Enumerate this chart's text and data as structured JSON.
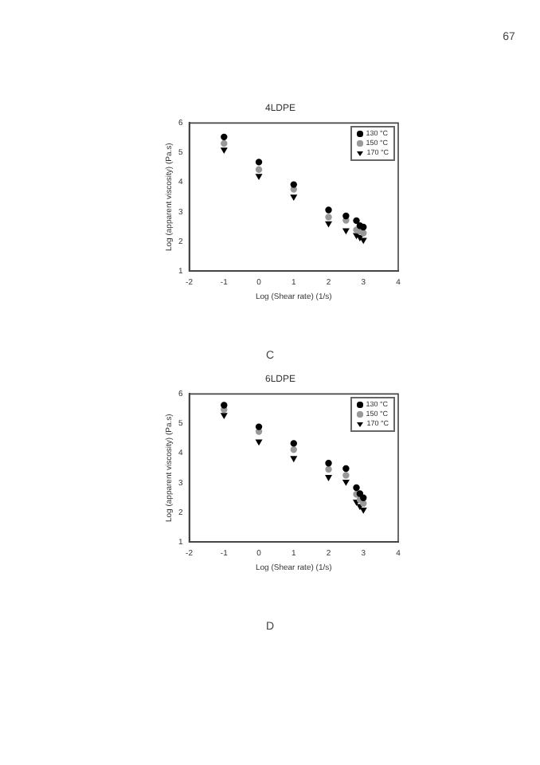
{
  "chart_data": [
    {
      "type": "scatter",
      "title": "4LDPE",
      "xlabel": "Log (Shear rate) (1/s)",
      "ylabel": "Log (apparent viscosity) (Pa.s)",
      "annotations": [
        "67",
        "C"
      ],
      "x": [
        -1,
        0,
        1,
        2,
        2.5,
        2.8,
        2.9,
        3
      ],
      "series": [
        {
          "name": "130 °C",
          "color": "#000000",
          "marker": "circle",
          "values": [
            5.53,
            4.68,
            3.92,
            3.06,
            2.86,
            2.7,
            2.53,
            2.48
          ]
        },
        {
          "name": "150 °C",
          "color": "#999999",
          "marker": "circle",
          "values": [
            5.31,
            4.43,
            3.76,
            2.82,
            2.71,
            2.39,
            2.34,
            2.28
          ]
        },
        {
          "name": "170 °C",
          "color": "#000000",
          "marker": "triangle",
          "values": [
            5.1,
            4.21,
            3.51,
            2.61,
            2.37,
            2.21,
            2.14,
            2.05
          ]
        }
      ],
      "xlim": [
        -2,
        4
      ],
      "xticks": [
        -2,
        -1,
        0,
        1,
        2,
        3,
        4
      ],
      "ylim": [
        1,
        6
      ],
      "yticks": [
        1,
        2,
        3,
        4,
        5,
        6
      ],
      "grid": false,
      "legend": "top right"
    },
    {
      "type": "scatter",
      "title": "6LDPE",
      "xlabel": "Log (Shear rate) (1/s)",
      "ylabel": "Log (apparent viscosity) (Pa.s)",
      "annotations": [
        "D"
      ],
      "x": [
        -1,
        0,
        1,
        2,
        2.5,
        2.8,
        2.9,
        3
      ],
      "series": [
        {
          "name": "130 °C",
          "color": "#000000",
          "marker": "circle",
          "values": [
            5.62,
            4.89,
            4.33,
            3.66,
            3.48,
            2.83,
            2.63,
            2.49
          ]
        },
        {
          "name": "150 °C",
          "color": "#999999",
          "marker": "circle",
          "values": [
            5.47,
            4.73,
            4.12,
            3.45,
            3.25,
            2.61,
            2.43,
            2.3
          ]
        },
        {
          "name": "170 °C",
          "color": "#000000",
          "marker": "triangle",
          "values": [
            5.29,
            4.39,
            3.83,
            3.19,
            3.03,
            2.36,
            2.21,
            2.09
          ]
        }
      ],
      "xlim": [
        -2,
        4
      ],
      "xticks": [
        -2,
        -1,
        0,
        1,
        2,
        3,
        4
      ],
      "ylim": [
        1,
        6
      ],
      "yticks": [
        1,
        2,
        3,
        4,
        5,
        6
      ],
      "grid": false,
      "legend": "top right"
    }
  ]
}
